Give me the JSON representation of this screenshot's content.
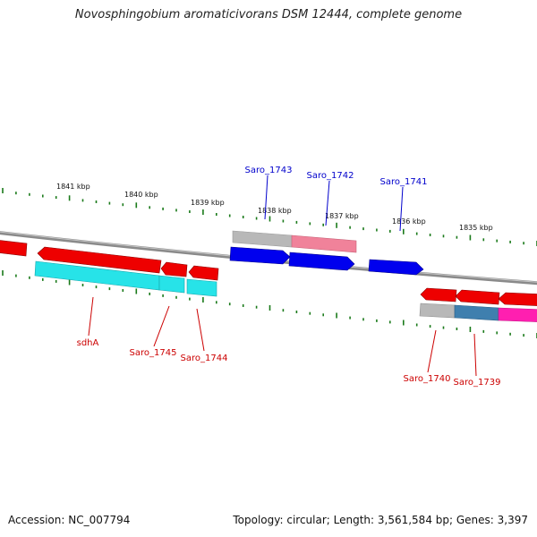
{
  "title": "Novosphingobium aromaticivorans DSM 12444, complete genome",
  "footer": {
    "accession": "Accession: NC_007794",
    "summary": "Topology: circular; Length: 3,561,584 bp; Genes: 3,397"
  },
  "kbp_ticks": [
    "1841 kbp",
    "1840 kbp",
    "1839 kbp",
    "1838 kbp",
    "1837 kbp",
    "1836 kbp",
    "1835 kbp"
  ],
  "gene_labels_top": [
    "Saro_1743",
    "Saro_1742",
    "Saro_1741"
  ],
  "gene_labels_bottom": [
    "sdhA",
    "Saro_1745",
    "Saro_1744",
    "Saro_1740",
    "Saro_1739"
  ],
  "colors": {
    "backbone": "#7a7a7a",
    "forward_gene": "#0000ee",
    "reverse_gene": "#ee0000",
    "top_label": "#0000cc",
    "bottom_label": "#cc0000",
    "tick_marks": "#1a7a1a",
    "cyan_annotation": "#27e3e8",
    "gray_annotation": "#b8b8b8",
    "pink_annotation": "#f0829a",
    "magenta_annotation": "#ff1fb0",
    "steel_annotation": "#3f7fae"
  }
}
